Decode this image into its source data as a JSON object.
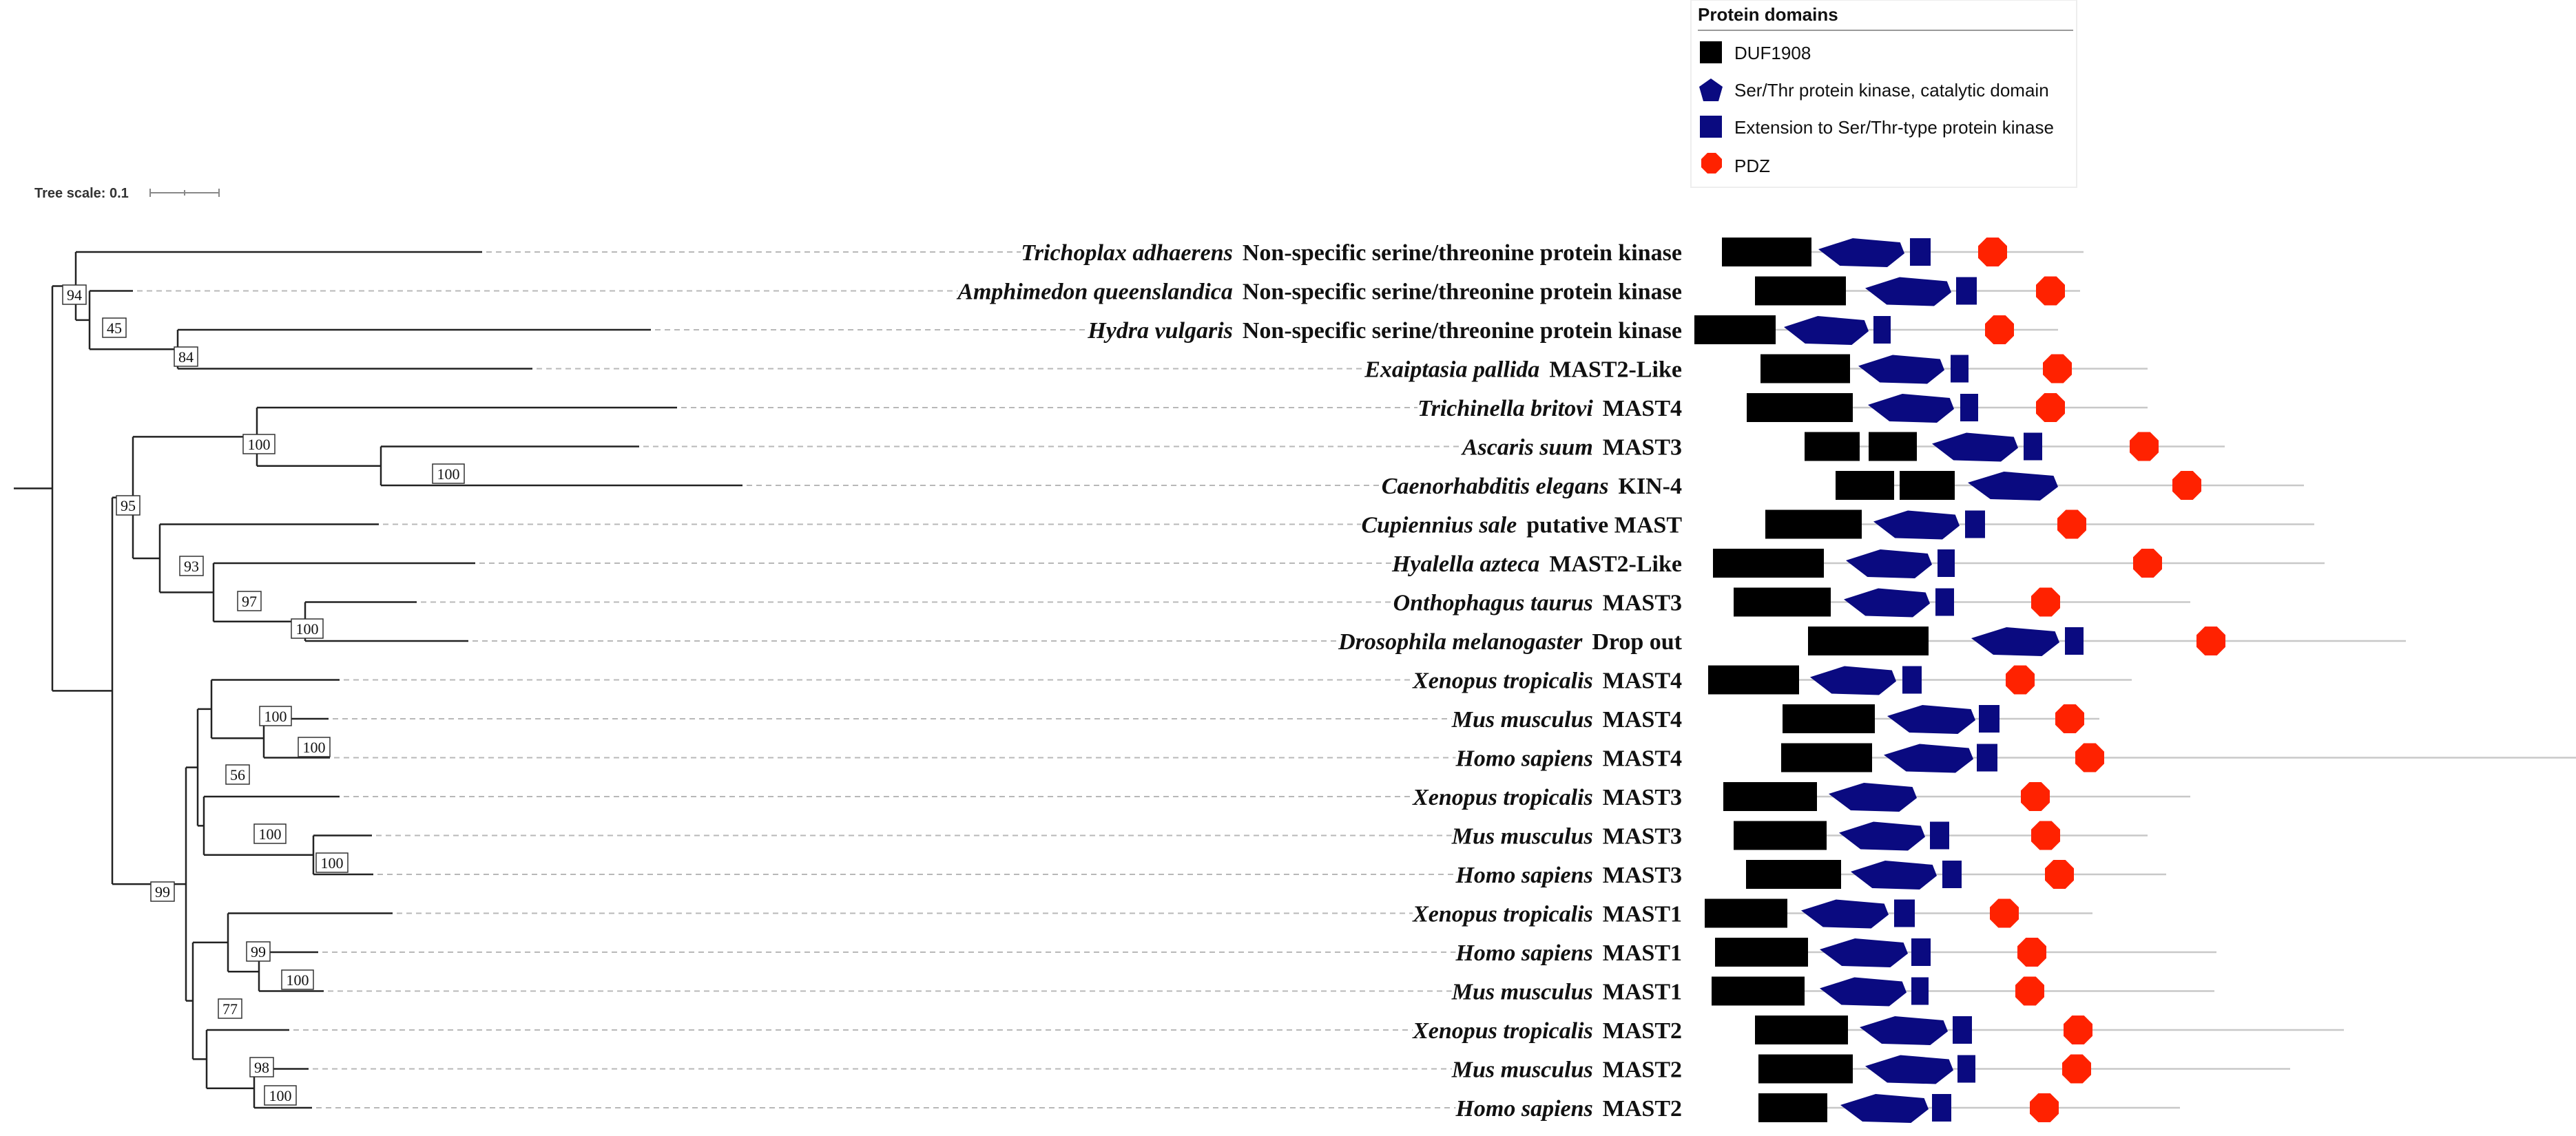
{
  "legend": {
    "title": "Protein domains",
    "items": [
      {
        "label": "DUF1908",
        "shape": "rect",
        "color": "#000000"
      },
      {
        "label": "Ser/Thr protein kinase, catalytic domain",
        "shape": "pentagon",
        "color": "#0a0a80"
      },
      {
        "label": "Extension to Ser/Thr-type protein kinase",
        "shape": "square",
        "color": "#0a0a80"
      },
      {
        "label": "PDZ",
        "shape": "octagon",
        "color": "#ff2200"
      }
    ]
  },
  "tree_scale": {
    "label": "Tree scale: 0.1"
  },
  "colors": {
    "duf": "#000000",
    "kinase": "#0a0a80",
    "ext": "#0a0a80",
    "pdz": "#ff2200",
    "line": "#222222",
    "dash": "#b8b8b8",
    "protein_line": "#c8c8c8"
  },
  "bootstrap": [
    {
      "node": "root-a",
      "value": "94"
    },
    {
      "node": "root-b",
      "value": "45"
    },
    {
      "node": "hydra",
      "value": "84"
    },
    {
      "node": "nematodes",
      "value": "100"
    },
    {
      "node": "ascaris-celegans",
      "value": "100"
    },
    {
      "node": "ecdysozoa",
      "value": "95"
    },
    {
      "node": "arthropods",
      "value": "93"
    },
    {
      "node": "hexapoda",
      "value": "97"
    },
    {
      "node": "onthophagus-dros",
      "value": "100"
    },
    {
      "node": "mast4",
      "value": "100"
    },
    {
      "node": "mast4-mammal",
      "value": "100"
    },
    {
      "node": "mast34",
      "value": "56"
    },
    {
      "node": "mast3",
      "value": "100"
    },
    {
      "node": "mast3-mammal",
      "value": "100"
    },
    {
      "node": "vertebrates",
      "value": "99"
    },
    {
      "node": "mast1",
      "value": "99"
    },
    {
      "node": "mast1-mammal",
      "value": "100"
    },
    {
      "node": "mast12",
      "value": "77"
    },
    {
      "node": "mast2",
      "value": "98"
    },
    {
      "node": "mast2-mammal",
      "value": "100"
    }
  ],
  "taxa": [
    {
      "species": "Trichoplax adhaerens",
      "protein": "Non-specific serine/threonine protein kinase"
    },
    {
      "species": "Amphimedon queenslandica",
      "protein": "Non-specific serine/threonine protein kinase"
    },
    {
      "species": "Hydra vulgaris",
      "protein": "Non-specific serine/threonine protein kinase"
    },
    {
      "species": "Exaiptasia pallida",
      "protein": "MAST2-Like"
    },
    {
      "species": "Trichinella britovi",
      "protein": "MAST4"
    },
    {
      "species": "Ascaris suum",
      "protein": "MAST3"
    },
    {
      "species": "Caenorhabditis elegans",
      "protein": "KIN-4"
    },
    {
      "species": "Cupiennius sale",
      "protein": "putative MAST"
    },
    {
      "species": "Hyalella azteca",
      "protein": "MAST2-Like"
    },
    {
      "species": "Onthophagus taurus",
      "protein": "MAST3"
    },
    {
      "species": "Drosophila melanogaster",
      "protein": "Drop out"
    },
    {
      "species": "Xenopus tropicalis",
      "protein": "MAST4"
    },
    {
      "species": "Mus musculus",
      "protein": "MAST4"
    },
    {
      "species": "Homo sapiens",
      "protein": "MAST4"
    },
    {
      "species": "Xenopus tropicalis",
      "protein": "MAST3"
    },
    {
      "species": "Mus musculus",
      "protein": "MAST3"
    },
    {
      "species": "Homo sapiens",
      "protein": "MAST3"
    },
    {
      "species": "Xenopus tropicalis",
      "protein": "MAST1"
    },
    {
      "species": "Homo sapiens",
      "protein": "MAST1"
    },
    {
      "species": "Mus musculus",
      "protein": "MAST1"
    },
    {
      "species": "Xenopus tropicalis",
      "protein": "MAST2"
    },
    {
      "species": "Mus musculus",
      "protein": "MAST2"
    },
    {
      "species": "Homo sapiens",
      "protein": "MAST2"
    }
  ]
}
